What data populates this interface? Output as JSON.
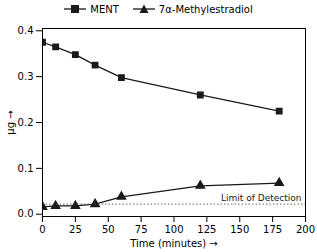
{
  "chart_data": {
    "type": "line",
    "x": [
      0,
      10,
      25,
      40,
      60,
      120,
      180
    ],
    "series": [
      {
        "name": "MENT",
        "color": "#1a1a1a",
        "marker": "square",
        "values": [
          0.375,
          0.365,
          0.348,
          0.325,
          0.298,
          0.26,
          0.225
        ]
      },
      {
        "name": "7α-Methylestradiol",
        "color": "#1a1a1a",
        "marker": "triangle",
        "values": [
          0.016,
          0.018,
          0.018,
          0.022,
          0.038,
          0.062,
          0.068
        ]
      }
    ],
    "annotations": [
      {
        "text": "Limit of Detection",
        "y": 0.022,
        "line_style": "dotted"
      }
    ],
    "xlabel": "Time (minutes)",
    "ylabel": "μg",
    "xlim": [
      0,
      200
    ],
    "ylim": [
      -0.005,
      0.405
    ],
    "xticks": [
      0,
      25,
      50,
      75,
      100,
      125,
      150,
      175,
      200
    ],
    "yticks": [
      {
        "value": 0.0,
        "label": "0.0"
      },
      0.1,
      0.2,
      0.3,
      0.4
    ],
    "grid": false
  }
}
